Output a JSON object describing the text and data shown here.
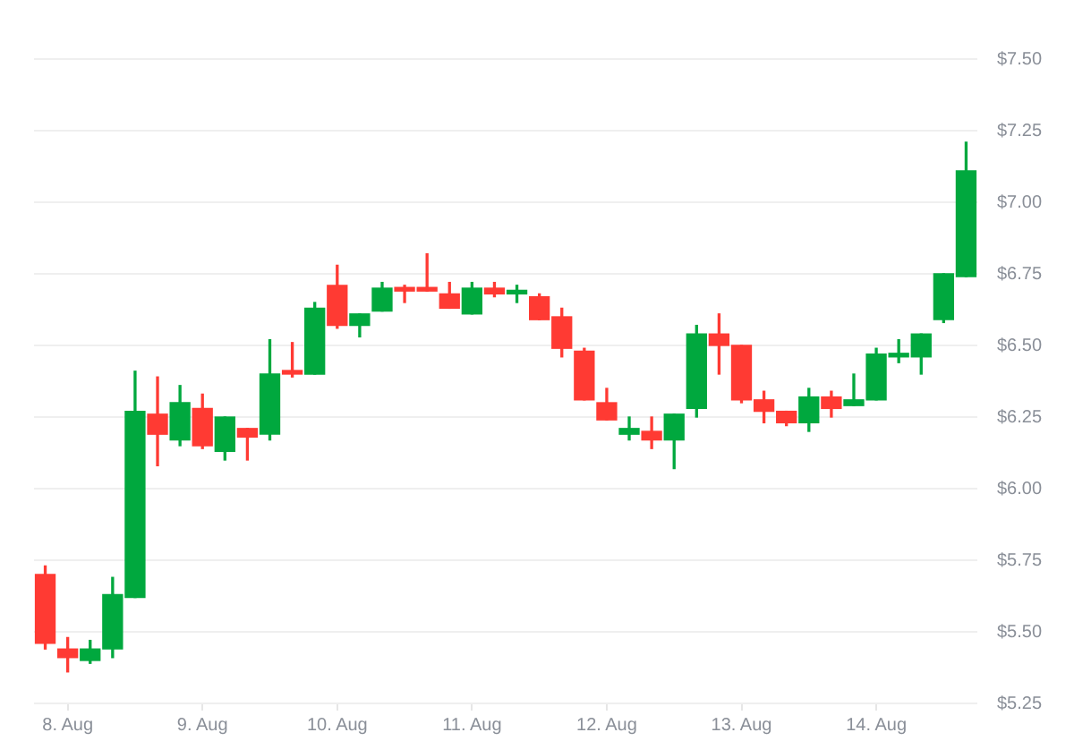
{
  "chart_data": {
    "type": "candlestick",
    "categories": [
      null,
      "8. Aug",
      null,
      null,
      null,
      null,
      null,
      "9. Aug",
      null,
      null,
      null,
      null,
      null,
      "10. Aug",
      null,
      null,
      null,
      null,
      null,
      "11. Aug",
      null,
      null,
      null,
      null,
      null,
      "12. Aug",
      null,
      null,
      null,
      null,
      null,
      "13. Aug",
      null,
      null,
      null,
      null,
      null,
      "14. Aug",
      null,
      null,
      null,
      null
    ],
    "ohlc": [
      [
        5.7,
        5.73,
        5.44,
        5.46
      ],
      [
        5.44,
        5.48,
        5.36,
        5.41
      ],
      [
        5.4,
        5.47,
        5.39,
        5.44
      ],
      [
        5.44,
        5.69,
        5.41,
        5.63
      ],
      [
        5.62,
        6.41,
        5.62,
        6.27
      ],
      [
        6.26,
        6.39,
        6.08,
        6.19
      ],
      [
        6.17,
        6.36,
        6.15,
        6.3
      ],
      [
        6.28,
        6.33,
        6.14,
        6.15
      ],
      [
        6.13,
        6.25,
        6.1,
        6.25
      ],
      [
        6.21,
        6.21,
        6.1,
        6.18
      ],
      [
        6.19,
        6.52,
        6.17,
        6.4
      ],
      [
        6.41,
        6.51,
        6.39,
        6.4
      ],
      [
        6.4,
        6.65,
        6.4,
        6.63
      ],
      [
        6.71,
        6.78,
        6.56,
        6.57
      ],
      [
        6.57,
        6.61,
        6.53,
        6.61
      ],
      [
        6.62,
        6.72,
        6.62,
        6.7
      ],
      [
        6.7,
        6.71,
        6.65,
        6.69
      ],
      [
        6.7,
        6.82,
        6.69,
        6.69
      ],
      [
        6.68,
        6.72,
        6.63,
        6.63
      ],
      [
        6.61,
        6.72,
        6.61,
        6.7
      ],
      [
        6.7,
        6.72,
        6.67,
        6.68
      ],
      [
        6.68,
        6.71,
        6.65,
        6.69
      ],
      [
        6.67,
        6.68,
        6.59,
        6.59
      ],
      [
        6.6,
        6.63,
        6.46,
        6.49
      ],
      [
        6.48,
        6.49,
        6.31,
        6.31
      ],
      [
        6.3,
        6.35,
        6.24,
        6.24
      ],
      [
        6.19,
        6.25,
        6.17,
        6.21
      ],
      [
        6.2,
        6.25,
        6.14,
        6.17
      ],
      [
        6.17,
        6.26,
        6.07,
        6.26
      ],
      [
        6.28,
        6.57,
        6.25,
        6.54
      ],
      [
        6.54,
        6.61,
        6.4,
        6.5
      ],
      [
        6.5,
        6.5,
        6.3,
        6.31
      ],
      [
        6.31,
        6.34,
        6.23,
        6.27
      ],
      [
        6.27,
        6.27,
        6.22,
        6.23
      ],
      [
        6.23,
        6.35,
        6.2,
        6.32
      ],
      [
        6.32,
        6.34,
        6.25,
        6.28
      ],
      [
        6.29,
        6.4,
        6.29,
        6.31
      ],
      [
        6.31,
        6.49,
        6.31,
        6.47
      ],
      [
        6.46,
        6.52,
        6.44,
        6.47
      ],
      [
        6.46,
        6.54,
        6.4,
        6.54
      ],
      [
        6.59,
        6.75,
        6.58,
        6.75
      ],
      [
        6.74,
        7.21,
        6.74,
        7.11
      ]
    ],
    "colors": [
      "#ff3a33",
      "#ff3a33",
      "#00a83e",
      "#00a83e",
      "#00a83e",
      "#ff3a33",
      "#00a83e",
      "#ff3a33",
      "#00a83e",
      "#ff3a33",
      "#00a83e",
      "#ff3a33",
      "#00a83e",
      "#ff3a33",
      "#00a83e",
      "#00a83e",
      "#ff3a33",
      "#ff3a33",
      "#ff3a33",
      "#00a83e",
      "#ff3a33",
      "#00a83e",
      "#ff3a33",
      "#ff3a33",
      "#ff3a33",
      "#ff3a33",
      "#00a83e",
      "#ff3a33",
      "#00a83e",
      "#00a83e",
      "#ff3a33",
      "#ff3a33",
      "#ff3a33",
      "#ff3a33",
      "#00a83e",
      "#ff3a33",
      "#00a83e",
      "#00a83e",
      "#00a83e",
      "#00a83e",
      "#00a83e",
      "#00a83e"
    ],
    "ylim": [
      5.25,
      7.5
    ],
    "yticks": [
      {
        "value": 5.25,
        "label": "$5.25"
      },
      {
        "value": 5.5,
        "label": "$5.50"
      },
      {
        "value": 5.75,
        "label": "$5.75"
      },
      {
        "value": 6,
        "label": "$6.00"
      },
      {
        "value": 6.25,
        "label": "$6.25"
      },
      {
        "value": 6.5,
        "label": "$6.50"
      },
      {
        "value": 6.75,
        "label": "$6.75"
      },
      {
        "value": 7,
        "label": "$7.00"
      },
      {
        "value": 7.25,
        "label": "$7.25"
      },
      {
        "value": 7.5,
        "label": "$7.50"
      }
    ],
    "grid": "y"
  }
}
